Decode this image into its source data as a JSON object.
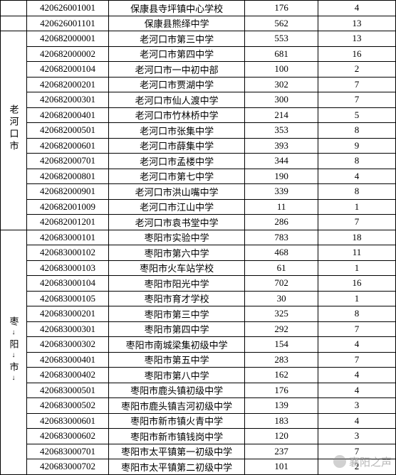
{
  "watermark": "襄阳之声",
  "columns": {
    "region_width": 36,
    "code_width": 112,
    "name_width": 186,
    "num1_width": 100,
    "num2_width": 106
  },
  "rows": [
    {
      "region": "",
      "code": "420626001001",
      "name": "保康县寺坪镇中心学校",
      "v1": "176",
      "v2": "4"
    },
    {
      "region": "",
      "code": "420626001101",
      "name": "保康县熊绎中学",
      "v1": "562",
      "v2": "13"
    },
    {
      "region_start": "老河口市",
      "region_span": 13,
      "code": "420682000001",
      "name": "老河口市第三中学",
      "v1": "553",
      "v2": "13"
    },
    {
      "code": "420682000002",
      "name": "老河口市第四中学",
      "v1": "681",
      "v2": "16"
    },
    {
      "code": "420682000104",
      "name": "老河口市一中初中部",
      "v1": "100",
      "v2": "2"
    },
    {
      "code": "420682000201",
      "name": "老河口市贾湖中学",
      "v1": "302",
      "v2": "7"
    },
    {
      "code": "420682000301",
      "name": "老河口市仙人渡中学",
      "v1": "300",
      "v2": "7"
    },
    {
      "code": "420682000401",
      "name": "老河口市竹林桥中学",
      "v1": "214",
      "v2": "5"
    },
    {
      "code": "420682000501",
      "name": "老河口市张集中学",
      "v1": "353",
      "v2": "8"
    },
    {
      "code": "420682000601",
      "name": "老河口市薛集中学",
      "v1": "393",
      "v2": "9"
    },
    {
      "code": "420682000701",
      "name": "老河口市孟楼中学",
      "v1": "344",
      "v2": "8"
    },
    {
      "code": "420682000801",
      "name": "老河口市第七中学",
      "v1": "190",
      "v2": "4"
    },
    {
      "code": "420682000901",
      "name": "老河口市洪山嘴中学",
      "v1": "339",
      "v2": "8"
    },
    {
      "code": "420682001009",
      "name": "老河口市江山中学",
      "v1": "11",
      "v2": "1"
    },
    {
      "code": "420682001201",
      "name": "老河口市袁书堂中学",
      "v1": "286",
      "v2": "7"
    },
    {
      "region_start": "枣阳市",
      "region_span": 16,
      "region_arrows": true,
      "code": "420683000101",
      "name": "枣阳市实验中学",
      "v1": "783",
      "v2": "18"
    },
    {
      "code": "420683000102",
      "name": "枣阳市第六中学",
      "v1": "468",
      "v2": "11"
    },
    {
      "code": "420683000103",
      "name": "枣阳市火车站学校",
      "v1": "61",
      "v2": "1"
    },
    {
      "code": "420683000104",
      "name": "枣阳市阳光中学",
      "v1": "702",
      "v2": "16"
    },
    {
      "code": "420683000105",
      "name": "枣阳市育才学校",
      "v1": "30",
      "v2": "1"
    },
    {
      "code": "420683000201",
      "name": "枣阳市第三中学",
      "v1": "325",
      "v2": "8"
    },
    {
      "code": "420683000301",
      "name": "枣阳市第四中学",
      "v1": "292",
      "v2": "7"
    },
    {
      "code": "420683000302",
      "name": "枣阳市南城梁集初级中学",
      "v1": "154",
      "v2": "4"
    },
    {
      "code": "420683000401",
      "name": "枣阳市第五中学",
      "v1": "283",
      "v2": "7"
    },
    {
      "code": "420683000402",
      "name": "枣阳市第八中学",
      "v1": "162",
      "v2": "4"
    },
    {
      "code": "420683000501",
      "name": "枣阳市鹿头镇初级中学",
      "v1": "176",
      "v2": "4"
    },
    {
      "code": "420683000502",
      "name": "枣阳市鹿头镇吉河初级中学",
      "v1": "139",
      "v2": "3"
    },
    {
      "code": "420683000601",
      "name": "枣阳市新市镇火青中学",
      "v1": "183",
      "v2": "4"
    },
    {
      "code": "420683000602",
      "name": "枣阳市新市镇钱岗中学",
      "v1": "120",
      "v2": "3"
    },
    {
      "code": "420683000701",
      "name": "枣阳市太平镇第一初级中学",
      "v1": "237",
      "v2": "7"
    },
    {
      "code": "420683000702",
      "name": "枣阳市太平镇第二初级中学",
      "v1": "101",
      "v2": "2"
    }
  ]
}
